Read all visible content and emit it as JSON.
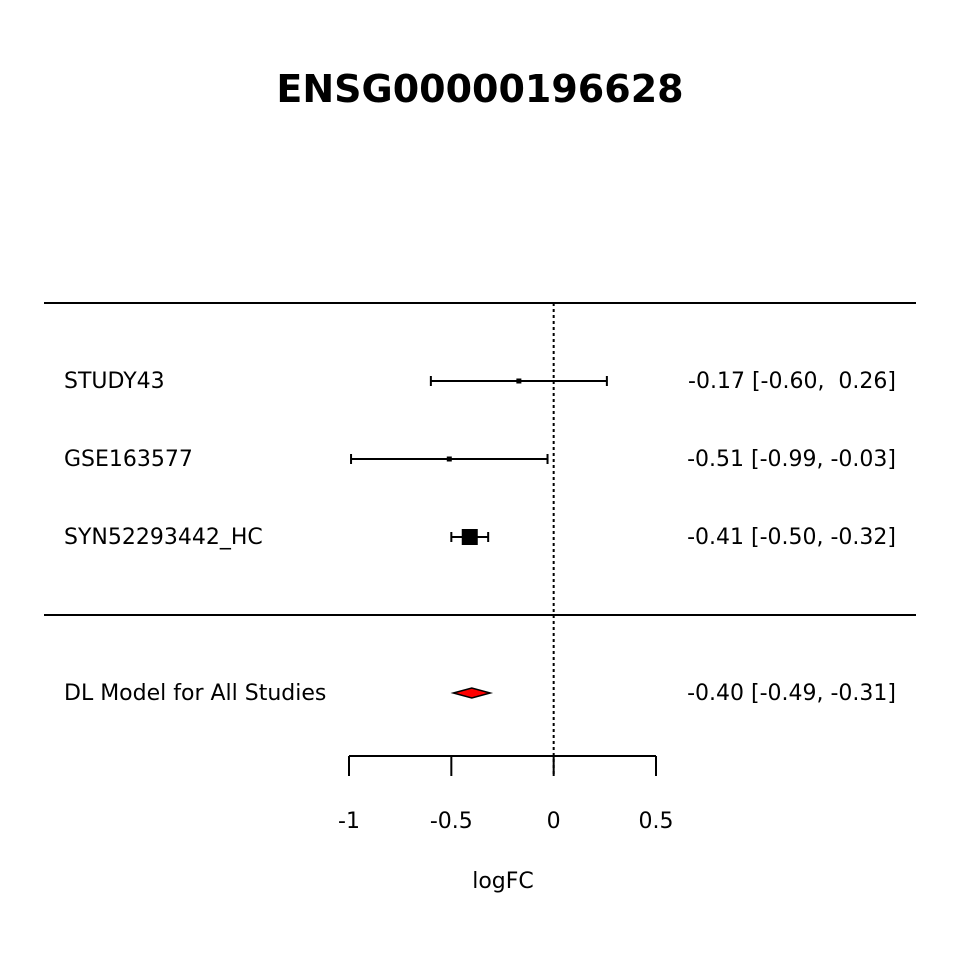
{
  "chart_data": {
    "type": "forest",
    "title": "ENSG00000196628",
    "xlabel": "logFC",
    "xlim": [
      -1,
      0.5
    ],
    "ticks": [
      -1,
      -0.5,
      0,
      0.5
    ],
    "tick_labels": [
      "-1",
      "-0.5",
      "0",
      "0.5"
    ],
    "reference_line": 0,
    "studies": [
      {
        "label": "STUDY43",
        "estimate": -0.17,
        "lower": -0.6,
        "upper": 0.26,
        "ci_text": "-0.17 [-0.60,  0.26]",
        "weight": 0.02
      },
      {
        "label": "GSE163577",
        "estimate": -0.51,
        "lower": -0.99,
        "upper": -0.03,
        "ci_text": "-0.51 [-0.99, -0.03]",
        "weight": 0.02
      },
      {
        "label": "SYN52293442_HC",
        "estimate": -0.41,
        "lower": -0.5,
        "upper": -0.32,
        "ci_text": "-0.41 [-0.50, -0.32]",
        "weight": 0.96
      }
    ],
    "summary": {
      "label": "DL Model for All Studies",
      "estimate": -0.4,
      "lower": -0.49,
      "upper": -0.31,
      "ci_text": "-0.40 [-0.49, -0.31]",
      "color": "#ff0000"
    }
  }
}
